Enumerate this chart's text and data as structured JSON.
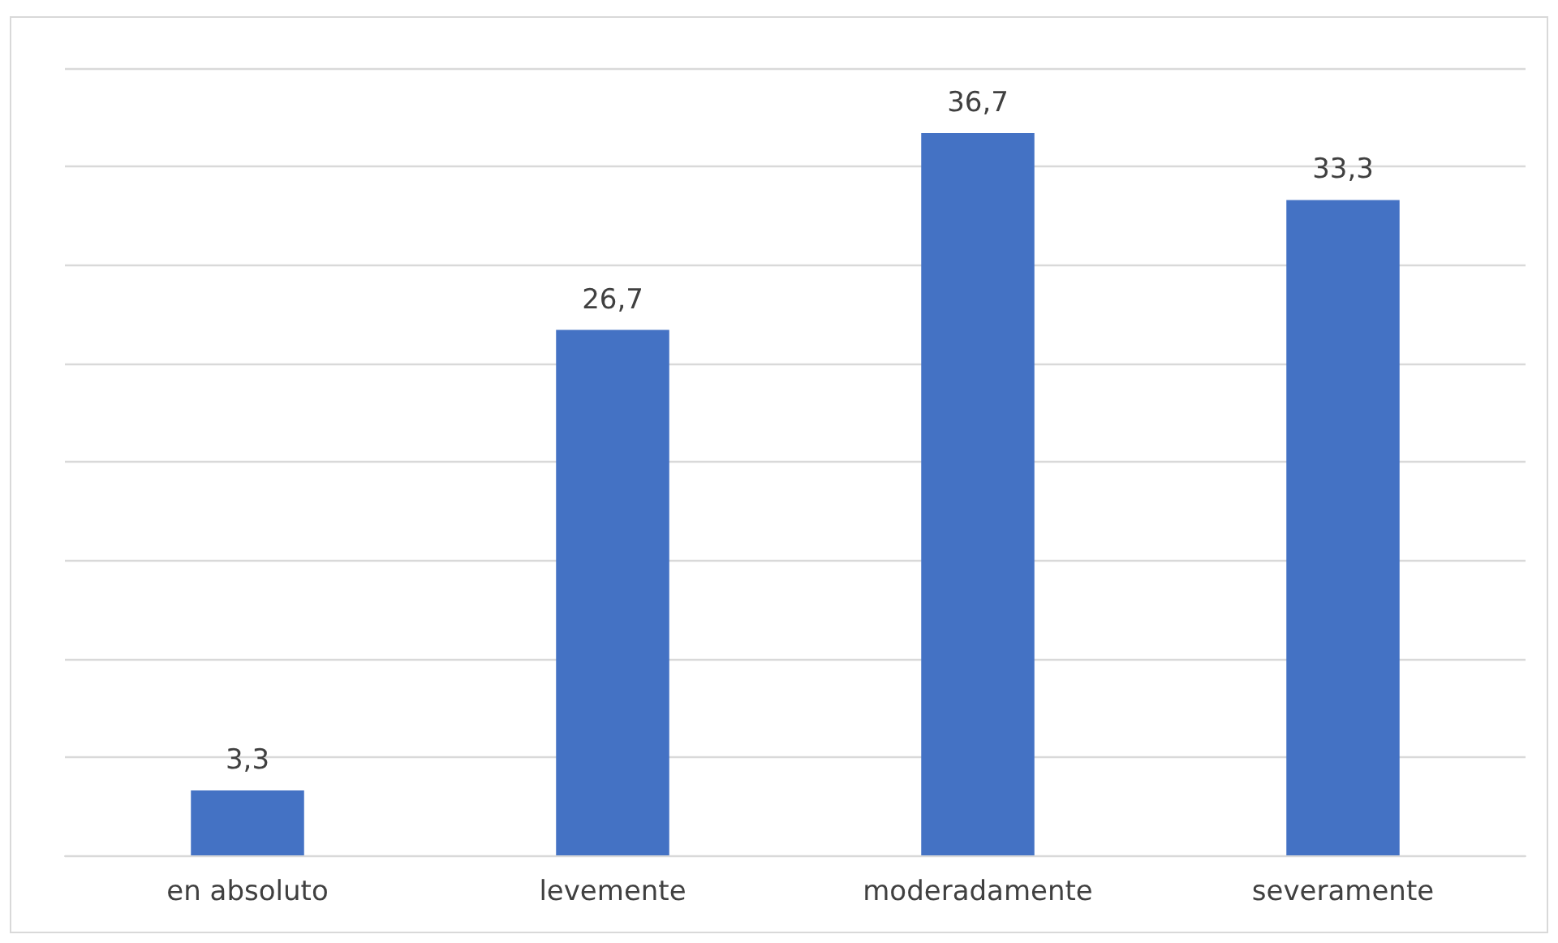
{
  "chart_data": {
    "type": "bar",
    "categories": [
      "en absoluto",
      "levemente",
      "moderadamente",
      "severamente"
    ],
    "values": [
      3.3,
      26.7,
      36.7,
      33.3
    ],
    "value_labels": [
      "3,3",
      "26,7",
      "36,7",
      "33,3"
    ],
    "color": "#4472c4",
    "ylim": [
      0,
      40
    ],
    "yticks": [
      0,
      5,
      10,
      15,
      20,
      25,
      30,
      35,
      40
    ],
    "grid": "y",
    "tick_labels": "x"
  }
}
